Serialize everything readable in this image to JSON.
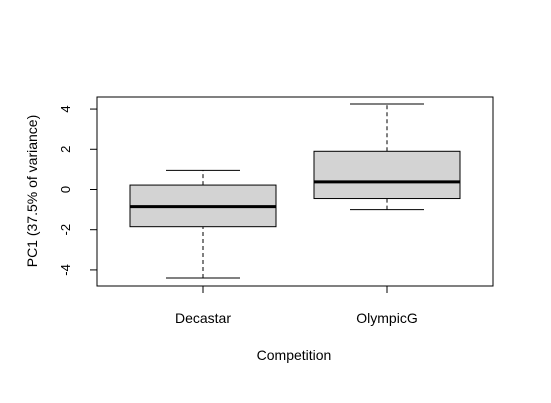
{
  "chart_data": {
    "type": "boxplot",
    "title": "",
    "xlabel": "Competition",
    "ylabel": "PC1 (37.5% of variance)",
    "ylim": [
      -4.8,
      4.6
    ],
    "yticks": [
      "-4",
      "-2",
      "0",
      "2",
      "4"
    ],
    "categories": [
      "Decastar",
      "OlympicG"
    ],
    "boxes": [
      {
        "category": "Decastar",
        "whisker_low": -4.4,
        "q1": -1.85,
        "median": -0.85,
        "q3": 0.22,
        "whisker_high": 0.95
      },
      {
        "category": "OlympicG",
        "whisker_low": -1.0,
        "q1": -0.45,
        "median": 0.38,
        "q3": 1.9,
        "whisker_high": 4.25
      }
    ],
    "box_fill": "#d3d3d3",
    "grid": false
  }
}
